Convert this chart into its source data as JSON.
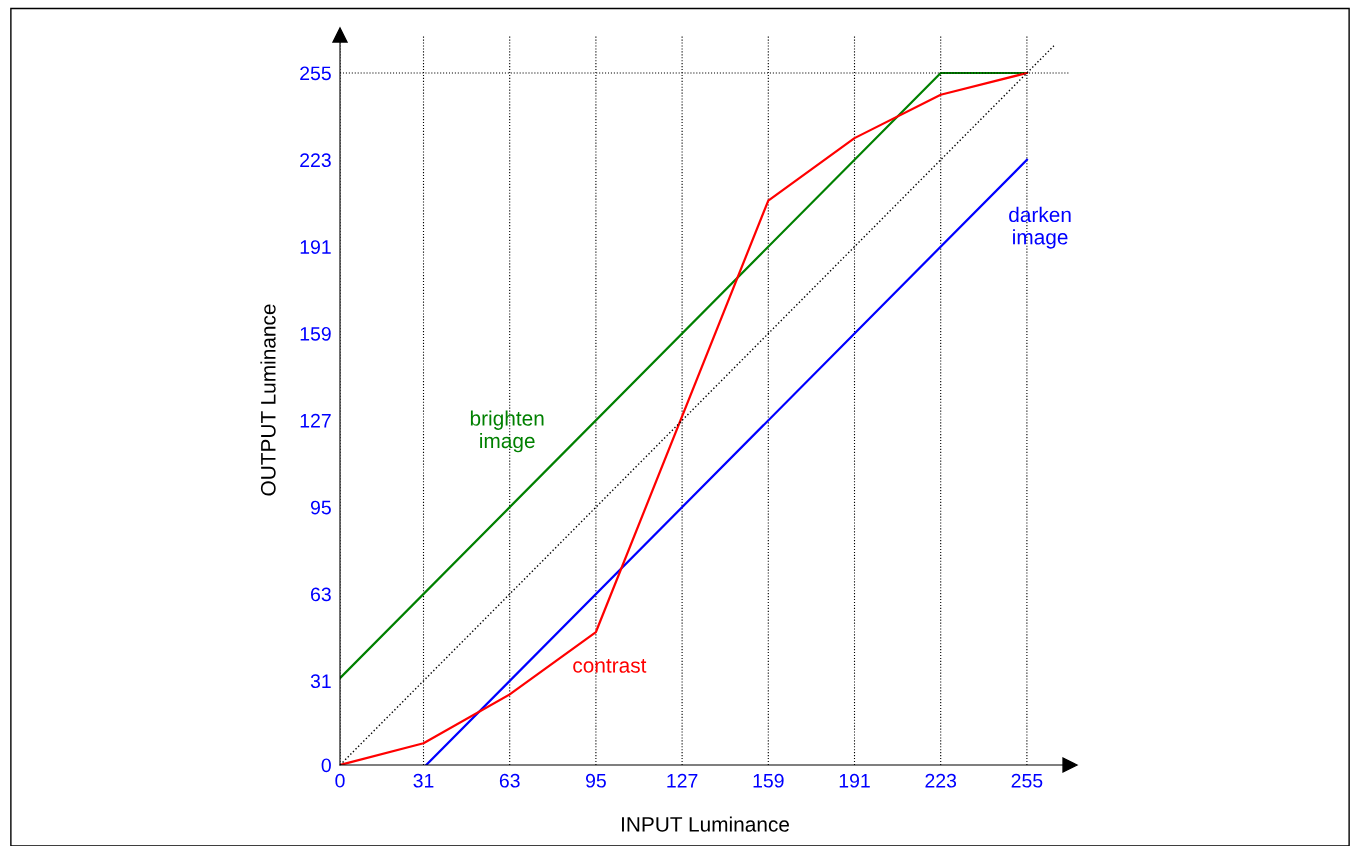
{
  "chart_data": {
    "type": "line",
    "xlabel": "INPUT Luminance",
    "ylabel": "OUTPUT Luminance",
    "xlim": [
      0,
      271
    ],
    "ylim": [
      0,
      269
    ],
    "xticks": [
      0,
      31,
      63,
      95,
      127,
      159,
      191,
      223,
      255
    ],
    "yticks": [
      0,
      31,
      63,
      95,
      127,
      159,
      191,
      223,
      255
    ],
    "grid": "x",
    "line_style": "solid",
    "ref_lines": [
      {
        "axis": "y",
        "value": 255,
        "color": "#000000",
        "line_style": "dotted"
      }
    ],
    "series": [
      {
        "name": "brighten\nimage",
        "color": "#008000",
        "x": [
          0,
          223,
          255
        ],
        "values": [
          32,
          255,
          255
        ]
      },
      {
        "name": "darken\nimage",
        "color": "#0000ff",
        "x": [
          32,
          255
        ],
        "values": [
          0,
          223
        ]
      },
      {
        "name": "contrast",
        "color": "#ff0000",
        "x": [
          0,
          31,
          63,
          95,
          159,
          191,
          223,
          255
        ],
        "values": [
          0,
          8,
          26,
          49,
          208,
          231,
          247,
          255
        ]
      },
      {
        "color": "#000000",
        "x": [
          0,
          265
        ],
        "values": [
          0,
          265
        ],
        "line_style": "dotted"
      }
    ]
  }
}
